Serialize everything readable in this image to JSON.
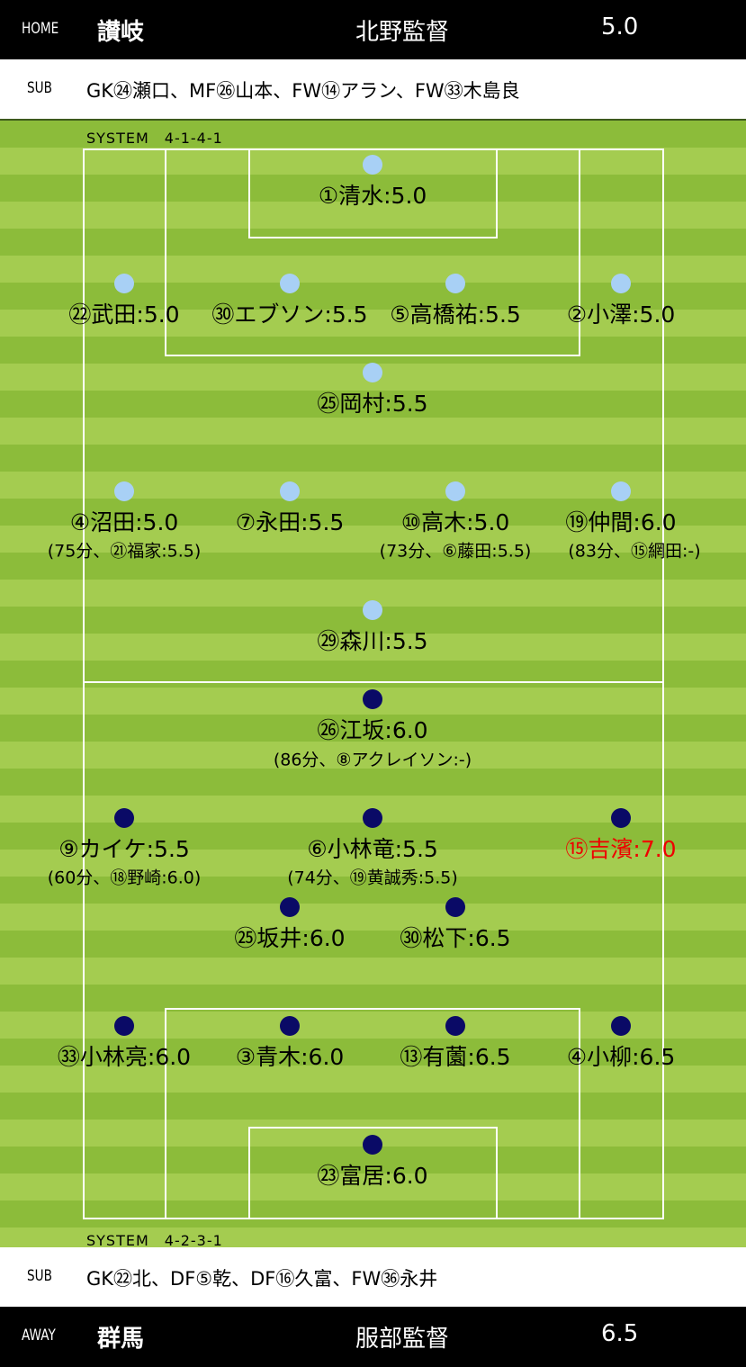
{
  "home": {
    "tag": "HOME",
    "team": "讃岐",
    "coach": "北野監督",
    "rating": "5.0",
    "sub_tag": "SUB",
    "subs": "GK㉔瀬口、MF㉖山本、FW⑭アラン、FW㉝木島良",
    "system": "SYSTEM　4-1-4-1",
    "players": [
      "①清水:5.0",
      "㉒武田:5.0",
      "㉚エブソン:5.5",
      "⑤高橋祐:5.5",
      "②小澤:5.0",
      "㉕岡村:5.5",
      "④沼田:5.0",
      "⑦永田:5.5",
      "⑩高木:5.0",
      "⑲仲間:6.0",
      "㉙森川:5.5"
    ],
    "changes": [
      "(75分、㉑福家:5.5)",
      "(73分、⑥藤田:5.5)",
      "(83分、⑮網田:-)"
    ]
  },
  "away": {
    "tag": "AWAY",
    "team": "群馬",
    "coach": "服部監督",
    "rating": "6.5",
    "sub_tag": "SUB",
    "subs": "GK㉒北、DF⑤乾、DF⑯久富、FW㊱永井",
    "system": "SYSTEM　4-2-3-1",
    "players": [
      "㉖江坂:6.0",
      "⑨カイケ:5.5",
      "⑥小林竜:5.5",
      "⑮吉濱:7.0",
      "㉕坂井:6.0",
      "㉚松下:6.5",
      "㉝小林亮:6.0",
      "③青木:6.0",
      "⑬有薗:6.5",
      "④小柳:6.5",
      "㉓富居:6.0"
    ],
    "changes": [
      "(86分、⑧アクレイソン:-)",
      "(60分、⑱野崎:6.0)",
      "(74分、⑲黄誠秀:5.5)"
    ]
  },
  "colors": {
    "home_dot": "#a8d0f5",
    "away_dot": "#0a0a66",
    "highlight": "#ee0000"
  }
}
